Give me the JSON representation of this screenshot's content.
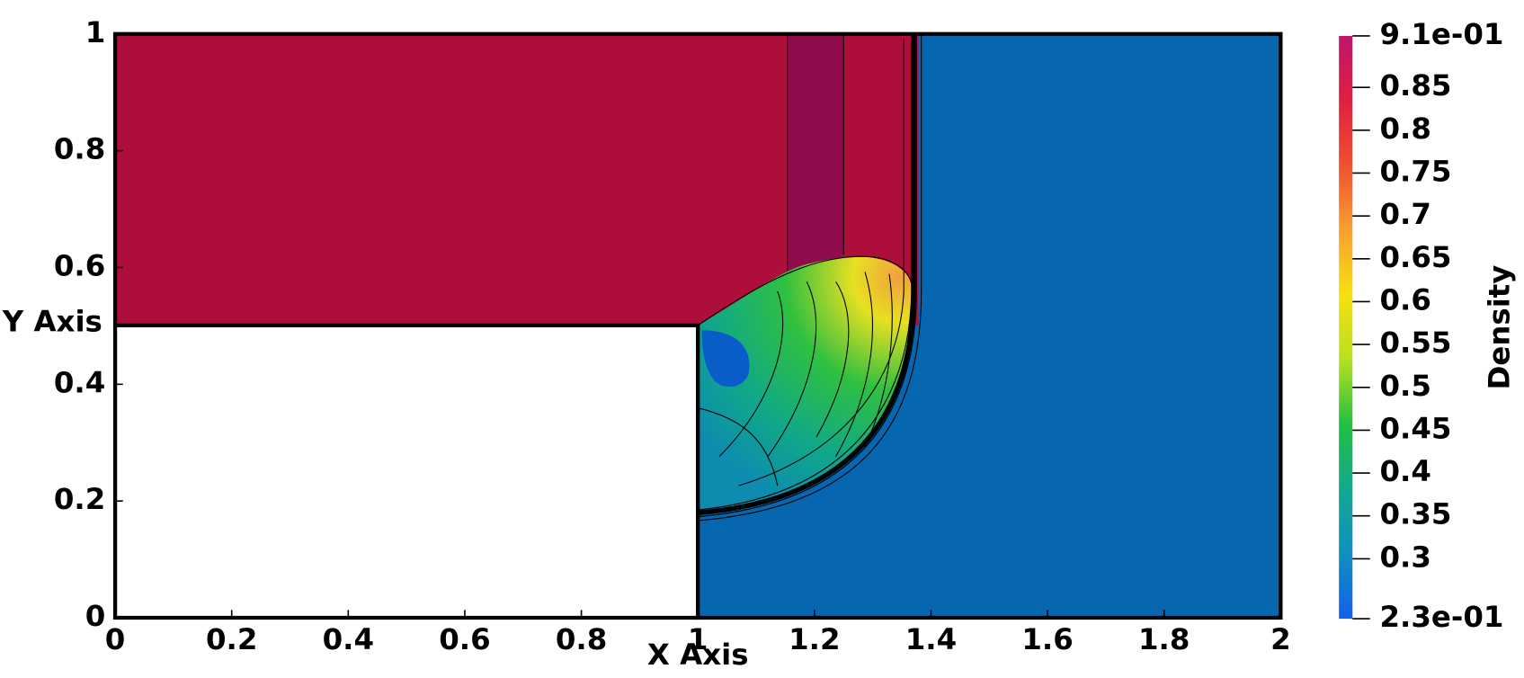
{
  "chart_data": {
    "type": "contour",
    "x_label": "X Axis",
    "y_label": "Y Axis",
    "xlim": [
      0,
      2
    ],
    "ylim": [
      0,
      1
    ],
    "xticks": [
      0,
      0.2,
      0.4,
      0.6,
      0.8,
      1,
      1.2,
      1.4,
      1.6,
      1.8,
      2
    ],
    "yticks": [
      0,
      0.2,
      0.4,
      0.6,
      0.8,
      1
    ],
    "colorbar": {
      "title": "Density",
      "lim": [
        0.23,
        0.91
      ],
      "ticks": [
        {
          "value": 0.91,
          "label": "9.1e-01"
        },
        0.85,
        0.8,
        0.75,
        0.7,
        0.65,
        0.6,
        0.55,
        0.5,
        0.45,
        0.4,
        0.35,
        0.3,
        {
          "value": 0.23,
          "label": "2.3e-01"
        }
      ],
      "colors": [
        "#1560ea",
        "#0f90c0",
        "#13a890",
        "#20c040",
        "#b8e020",
        "#f8e010",
        "#f8a030",
        "#f05030",
        "#e02040",
        "#c0146e"
      ]
    }
  }
}
